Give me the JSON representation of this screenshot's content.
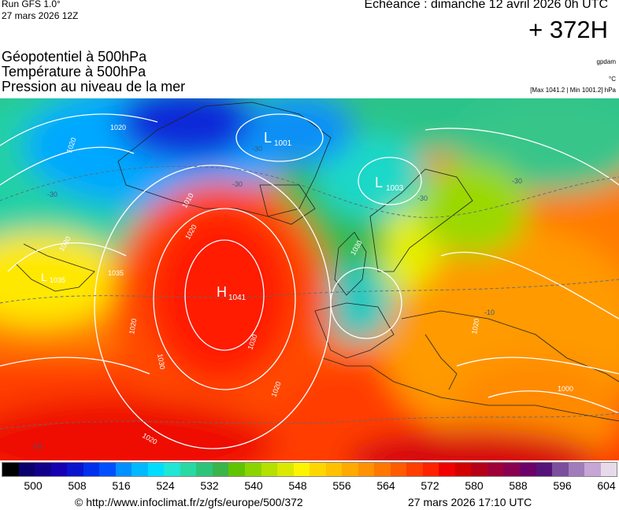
{
  "header": {
    "run_title": "Run GFS 1.0°",
    "run_date": "27 mars 2026 12Z",
    "valid_time": "Echéance : dimanche 12 avril 2026 0h UTC",
    "lead_time": "+ 372H",
    "titles": [
      "Géopotentiel à 500hPa",
      "Température à 500hPa",
      "Pression au niveau de la mer"
    ],
    "model_code": "gpdam",
    "temp_unit": "°C",
    "pressure_range": "[Max 1041.2 | Min 1001.2] hPa"
  },
  "map": {
    "pressure_centers": [
      {
        "type": "H",
        "value": "1041"
      },
      {
        "type": "L",
        "value": "1001"
      },
      {
        "type": "L",
        "value": "1003"
      },
      {
        "type": "L",
        "value": "1035"
      }
    ],
    "isobar_labels": [
      "1020",
      "1030",
      "1010",
      "1020",
      "1030",
      "1020",
      "1030",
      "1020",
      "1020",
      "1030",
      "1020",
      "1000",
      "1035",
      "1020"
    ],
    "temperature_labels": [
      "-30",
      "-30",
      "-30",
      "-30",
      "-30",
      "-10",
      "-10"
    ],
    "colors": {
      "high_center": "#ff1a00",
      "low_center": "#00c7ea",
      "cold_pole": "#001fc9",
      "isobar": "#ffffff"
    }
  },
  "colorbar": {
    "colors": [
      "#000000",
      "#0b006b",
      "#130089",
      "#1600b1",
      "#0a14cd",
      "#0030ec",
      "#0050ff",
      "#0090ff",
      "#00b9ff",
      "#00ddff",
      "#1fe6d5",
      "#29d9a3",
      "#2dc47a",
      "#3ab54a",
      "#62c400",
      "#8cd400",
      "#b5e000",
      "#dbe900",
      "#fff400",
      "#ffd700",
      "#ffc100",
      "#ffaa00",
      "#ff9200",
      "#ff7800",
      "#ff5b00",
      "#ff3e00",
      "#ff2200",
      "#f00000",
      "#d20000",
      "#b60018",
      "#9f0038",
      "#8a0050",
      "#6d0068",
      "#55137a",
      "#7b4f9c",
      "#a07cbb",
      "#c6a6d6",
      "#e7dbeb"
    ],
    "ticks": [
      "500",
      "508",
      "516",
      "524",
      "532",
      "540",
      "548",
      "556",
      "564",
      "572",
      "580",
      "588",
      "596",
      "604"
    ]
  },
  "footer": {
    "url": "© http://www.infoclimat.fr/z/gfs/europe/500/372",
    "generated": "27 mars 2026 17:10 UTC"
  }
}
